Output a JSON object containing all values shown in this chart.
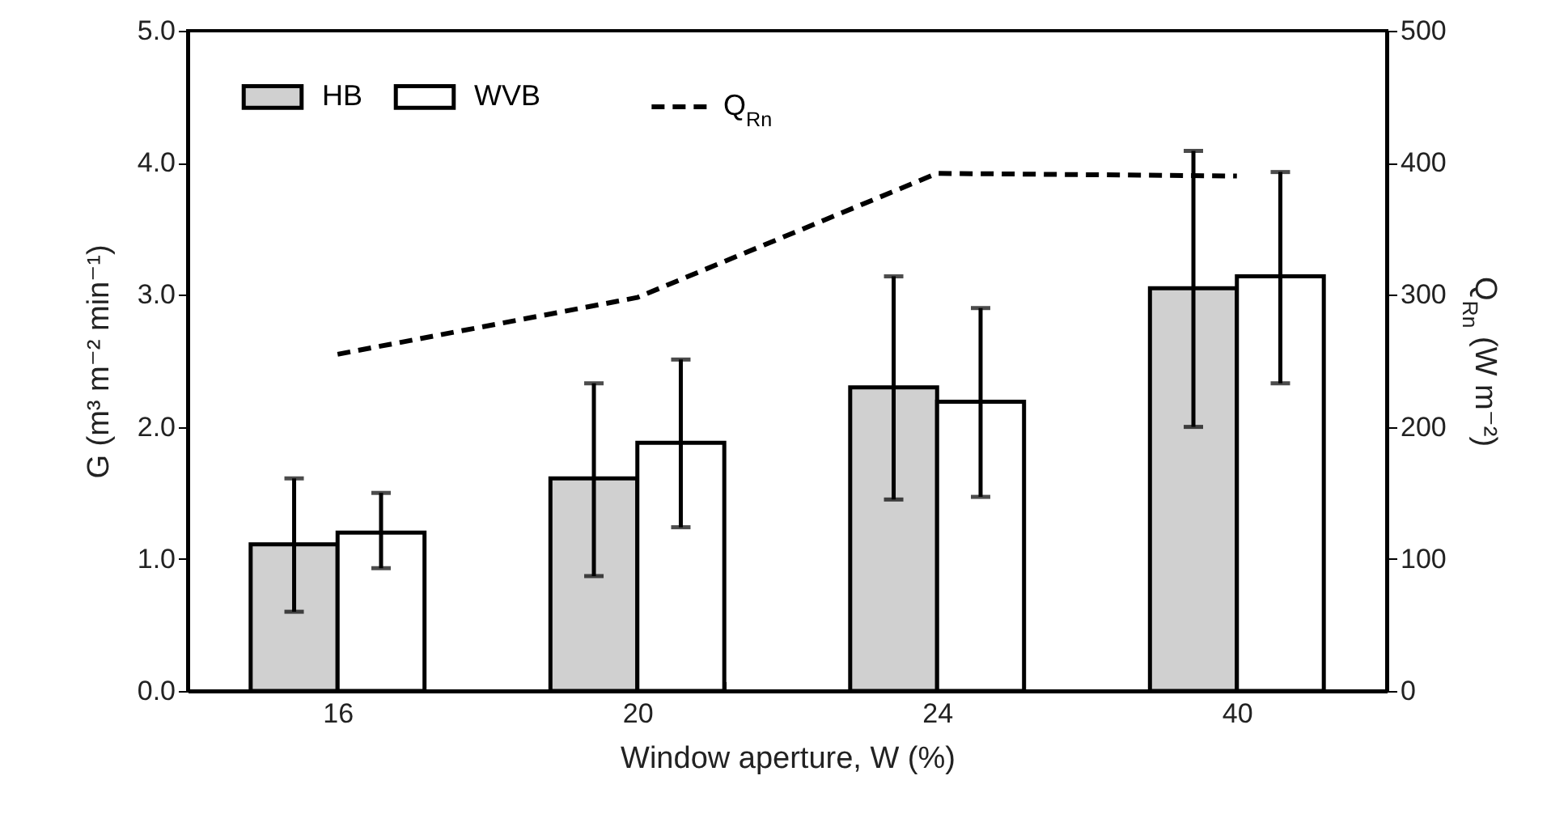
{
  "chart_data": {
    "type": "bar",
    "xlabel": "Window aperture, W (%)",
    "ylabel": "G (m³ m⁻² min⁻¹)",
    "y2label": "Q$_{Rn}$ (W m⁻²)",
    "categories": [
      "16",
      "20",
      "24",
      "40"
    ],
    "series": [
      {
        "name": "HB",
        "color": "#d0d0d0",
        "values": [
          1.11,
          1.61,
          2.3,
          3.05
        ],
        "errors": [
          [
            0.6,
            1.61
          ],
          [
            0.87,
            2.33
          ],
          [
            1.45,
            3.14
          ],
          [
            2.0,
            4.09
          ]
        ]
      },
      {
        "name": "WVB",
        "color": "#ffffff",
        "values": [
          1.2,
          1.88,
          2.19,
          3.14
        ],
        "errors": [
          [
            0.93,
            1.5
          ],
          [
            1.24,
            2.51
          ],
          [
            1.47,
            2.9
          ],
          [
            2.33,
            3.93
          ]
        ]
      },
      {
        "name": "Q$_{Rn}$",
        "type": "line",
        "axis": "y2",
        "color": "#000000",
        "line_style": "dashed",
        "values": [
          255,
          298,
          392,
          390
        ]
      }
    ],
    "ylim": [
      0,
      5
    ],
    "yticks": [
      {
        "value": 0,
        "label": "0.0"
      },
      {
        "value": 1,
        "label": "1.0"
      },
      {
        "value": 2,
        "label": "2.0"
      },
      {
        "value": 3,
        "label": "3.0"
      },
      {
        "value": 4,
        "label": "4.0"
      },
      {
        "value": 5,
        "label": "5.0"
      }
    ],
    "y2lim": [
      0,
      500
    ],
    "y2ticks": [
      0,
      100,
      200,
      300,
      400,
      500
    ],
    "grid": false,
    "legend": "top left"
  }
}
